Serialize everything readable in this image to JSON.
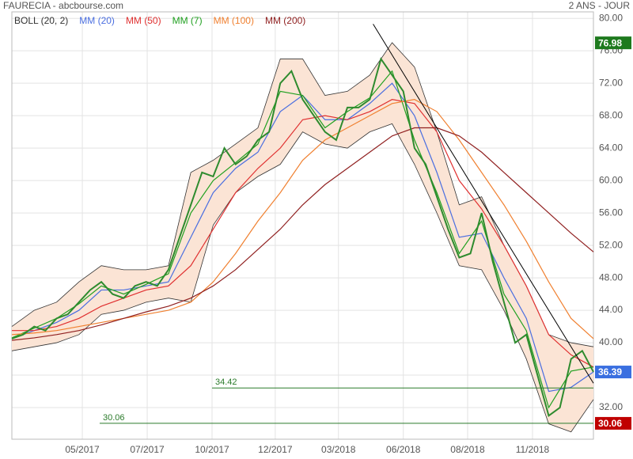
{
  "chart_data": {
    "type": "line",
    "title": "FAURECIA - abcbourse.com",
    "subtitle": "2 ANS - JOUR",
    "xlim": [
      0,
      104
    ],
    "xticks": [
      {
        "value": 12.6,
        "label": "05/2017"
      },
      {
        "value": 24.2,
        "label": "07/2017"
      },
      {
        "value": 35.8,
        "label": "10/2017"
      },
      {
        "value": 47.1,
        "label": "12/2017"
      },
      {
        "value": 58.4,
        "label": "03/2018"
      },
      {
        "value": 70.0,
        "label": "06/2018"
      },
      {
        "value": 81.5,
        "label": "08/2018"
      },
      {
        "value": 93.1,
        "label": "11/2018"
      }
    ],
    "ylim": [
      28.1,
      80.8
    ],
    "yticks": [
      {
        "value": 32,
        "label": "32.00"
      },
      {
        "value": 36,
        "label": "36.00"
      },
      {
        "value": 40,
        "label": "40.00"
      },
      {
        "value": 44,
        "label": "44.00"
      },
      {
        "value": 48,
        "label": "48.00"
      },
      {
        "value": 52,
        "label": "52.00"
      },
      {
        "value": 56,
        "label": "56.00"
      },
      {
        "value": 60,
        "label": "60.00"
      },
      {
        "value": 64,
        "label": "64.00"
      },
      {
        "value": 68,
        "label": "68.00"
      },
      {
        "value": 72,
        "label": "72.00"
      },
      {
        "value": 76,
        "label": "76.00"
      },
      {
        "value": 80,
        "label": "80.00"
      }
    ],
    "grid": true,
    "price": {
      "color": "#2e8b2e",
      "x": [
        0,
        2,
        4,
        6,
        8,
        10,
        12,
        14,
        16,
        18,
        20,
        22,
        24,
        26,
        28,
        30,
        32,
        34,
        36,
        38,
        40,
        42,
        44,
        46,
        48,
        50,
        52,
        54,
        56,
        58,
        60,
        62,
        64,
        66,
        68,
        70,
        72,
        74,
        76,
        78,
        80,
        82,
        84,
        86,
        88,
        90,
        92,
        94,
        96,
        98,
        100,
        102,
        104
      ],
      "values": [
        40.5,
        41,
        42,
        41.5,
        43,
        43.5,
        45,
        46.5,
        47.5,
        46,
        45.5,
        47,
        47.5,
        47,
        49,
        53,
        57,
        61,
        60.5,
        64,
        62,
        63,
        65,
        66,
        72,
        73.5,
        70,
        68,
        66,
        65,
        69,
        69,
        70,
        75,
        73,
        71,
        64,
        62,
        58,
        54,
        50.5,
        51,
        56,
        50,
        45,
        40,
        41,
        36,
        31,
        32,
        38,
        39,
        36.4
      ]
    },
    "x": [
      0,
      4,
      8,
      12,
      16,
      20,
      24,
      28,
      32,
      36,
      40,
      44,
      48,
      52,
      56,
      60,
      64,
      68,
      72,
      76,
      80,
      84,
      88,
      92,
      96,
      100,
      104
    ],
    "bollinger": {
      "name": "BOLL (20, 2)",
      "color": "#333333",
      "fill": "#fbe4d5",
      "upper": [
        42,
        44,
        45,
        47.5,
        49.5,
        49,
        49,
        49.5,
        61,
        62.5,
        64.5,
        66.5,
        75,
        75,
        70.5,
        71,
        73,
        77,
        74,
        66,
        57,
        58,
        52,
        47,
        41,
        40,
        39.5
      ],
      "lower": [
        39,
        39.5,
        40,
        41,
        43.5,
        44,
        45,
        45.5,
        45,
        54.5,
        58.5,
        60.5,
        62,
        66,
        64.5,
        64,
        66,
        67,
        62,
        56,
        49.5,
        49,
        44,
        38,
        30,
        29,
        33
      ]
    },
    "series": [
      {
        "name": "MM (20)",
        "color": "#4a6ee0",
        "values": [
          40.5,
          41.5,
          42.5,
          44,
          46.5,
          46.5,
          47,
          47.5,
          53,
          58.5,
          61.5,
          63.5,
          68.5,
          70.5,
          67.5,
          67.5,
          69.5,
          72,
          68,
          61,
          53,
          53.5,
          48,
          43,
          34,
          34.5,
          36.4
        ]
      },
      {
        "name": "MM (50)",
        "color": "#e03030",
        "values": [
          41.5,
          41.5,
          42,
          43,
          44.5,
          45.5,
          46.5,
          47,
          49.5,
          54,
          58.5,
          61.5,
          64,
          67.5,
          68,
          67.5,
          68.5,
          70,
          69.5,
          66,
          60,
          56.5,
          52,
          47,
          41,
          38.5,
          37
        ]
      },
      {
        "name": "MM (7)",
        "color": "#20a020",
        "values": [
          40.6,
          41.8,
          43,
          44.8,
          47,
          46,
          47.2,
          48.5,
          56,
          60,
          62.2,
          64.5,
          71,
          70.5,
          66.5,
          68.5,
          70.2,
          73.5,
          65,
          58.5,
          51,
          55,
          46,
          41.5,
          32,
          36.5,
          37
        ]
      },
      {
        "name": "MM (100)",
        "color": "#f08030",
        "values": [
          41,
          41.2,
          41.5,
          42,
          42.5,
          43,
          43.5,
          44,
          45,
          47.5,
          51,
          55,
          58.5,
          62.5,
          65,
          66.5,
          68,
          69.5,
          70,
          68.5,
          65,
          61,
          57,
          52.5,
          47.5,
          43,
          40.5
        ]
      },
      {
        "name": "MM (200)",
        "color": "#902020",
        "values": [
          40.3,
          40.6,
          41,
          41.5,
          42.2,
          43,
          43.8,
          44.5,
          45.5,
          47,
          49,
          51.5,
          54,
          57,
          59.5,
          61.5,
          63.5,
          65.5,
          66.5,
          66.5,
          65.5,
          63.5,
          61,
          58.5,
          56,
          53.5,
          51.2
        ]
      }
    ],
    "trendline": {
      "color": "#000000",
      "x": [
        64.6,
        104
      ],
      "values": [
        79.3,
        35
      ]
    },
    "levels": [
      {
        "value": 34.42,
        "x_start": 35.8,
        "color": "#2a7a2a"
      },
      {
        "value": 30.06,
        "x_start": 15.7,
        "color": "#2a7a2a"
      }
    ],
    "markers": [
      {
        "value": 76.98,
        "color": "#1e7a1e"
      },
      {
        "value": 36.39,
        "color": "#3a6fe0"
      },
      {
        "value": 30.06,
        "color": "#c00000"
      }
    ]
  }
}
